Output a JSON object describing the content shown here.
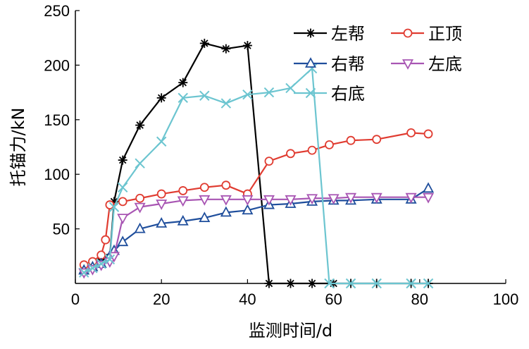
{
  "chart_data": {
    "type": "line",
    "title": "",
    "xlabel": "监测时间/d",
    "ylabel": "托锚力/kN",
    "xlim": [
      0,
      100
    ],
    "ylim": [
      0,
      250
    ],
    "xticks": [
      "0",
      "20",
      "40",
      "60",
      "80",
      "100"
    ],
    "yticks": [
      "50",
      "100",
      "150",
      "200",
      "250"
    ],
    "grid": false,
    "legend_position": "top-right",
    "series": [
      {
        "name": "左帮",
        "color": "#000000",
        "marker": "asterisk",
        "points": [
          [
            2,
            10
          ],
          [
            4,
            15
          ],
          [
            6,
            20
          ],
          [
            8,
            24
          ],
          [
            9,
            75
          ],
          [
            11,
            113
          ],
          [
            15,
            145
          ],
          [
            20,
            170
          ],
          [
            25,
            184
          ],
          [
            30,
            220
          ],
          [
            35,
            215
          ],
          [
            40,
            218
          ],
          [
            45,
            0
          ],
          [
            50,
            0
          ],
          [
            55,
            0
          ],
          [
            60,
            0
          ],
          [
            64,
            0
          ],
          [
            70,
            0
          ],
          [
            78,
            0
          ],
          [
            82,
            0
          ]
        ]
      },
      {
        "name": "正顶",
        "color": "#e03c31",
        "marker": "circle",
        "points": [
          [
            2,
            17
          ],
          [
            4,
            20
          ],
          [
            6,
            26
          ],
          [
            7,
            40
          ],
          [
            8,
            72
          ],
          [
            11,
            75
          ],
          [
            15,
            78
          ],
          [
            20,
            82
          ],
          [
            25,
            85
          ],
          [
            30,
            88
          ],
          [
            35,
            90
          ],
          [
            40,
            82
          ],
          [
            45,
            112
          ],
          [
            50,
            119
          ],
          [
            55,
            122
          ],
          [
            59,
            127
          ],
          [
            64,
            131
          ],
          [
            70,
            132
          ],
          [
            78,
            138
          ],
          [
            82,
            137
          ]
        ]
      },
      {
        "name": "右帮",
        "color": "#1f4e9c",
        "marker": "triangle-up",
        "points": [
          [
            2,
            12
          ],
          [
            4,
            15
          ],
          [
            6,
            18
          ],
          [
            8,
            25
          ],
          [
            9,
            30
          ],
          [
            11,
            38
          ],
          [
            15,
            50
          ],
          [
            20,
            55
          ],
          [
            25,
            57
          ],
          [
            30,
            60
          ],
          [
            35,
            65
          ],
          [
            40,
            67
          ],
          [
            45,
            72
          ],
          [
            50,
            73
          ],
          [
            55,
            75
          ],
          [
            60,
            76
          ],
          [
            64,
            76
          ],
          [
            70,
            77
          ],
          [
            78,
            77
          ],
          [
            82,
            87
          ]
        ]
      },
      {
        "name": "左底",
        "color": "#a855b3",
        "marker": "triangle-down",
        "points": [
          [
            2,
            10
          ],
          [
            4,
            13
          ],
          [
            6,
            17
          ],
          [
            8,
            20
          ],
          [
            9,
            25
          ],
          [
            11,
            60
          ],
          [
            15,
            70
          ],
          [
            20,
            73
          ],
          [
            25,
            76
          ],
          [
            30,
            77
          ],
          [
            35,
            77
          ],
          [
            40,
            77
          ],
          [
            45,
            77
          ],
          [
            50,
            77
          ],
          [
            55,
            78
          ],
          [
            60,
            78
          ],
          [
            64,
            79
          ],
          [
            70,
            79
          ],
          [
            78,
            79
          ],
          [
            82,
            79
          ]
        ]
      },
      {
        "name": "右底",
        "color": "#6cc5d0",
        "marker": "x",
        "points": [
          [
            2,
            10
          ],
          [
            4,
            14
          ],
          [
            6,
            18
          ],
          [
            8,
            22
          ],
          [
            9,
            70
          ],
          [
            11,
            88
          ],
          [
            15,
            110
          ],
          [
            20,
            130
          ],
          [
            25,
            170
          ],
          [
            30,
            172
          ],
          [
            35,
            165
          ],
          [
            40,
            173
          ],
          [
            45,
            175
          ],
          [
            50,
            179
          ],
          [
            55,
            197
          ],
          [
            59,
            0
          ],
          [
            64,
            0
          ],
          [
            70,
            0
          ],
          [
            78,
            0
          ],
          [
            82,
            0
          ]
        ]
      }
    ]
  }
}
